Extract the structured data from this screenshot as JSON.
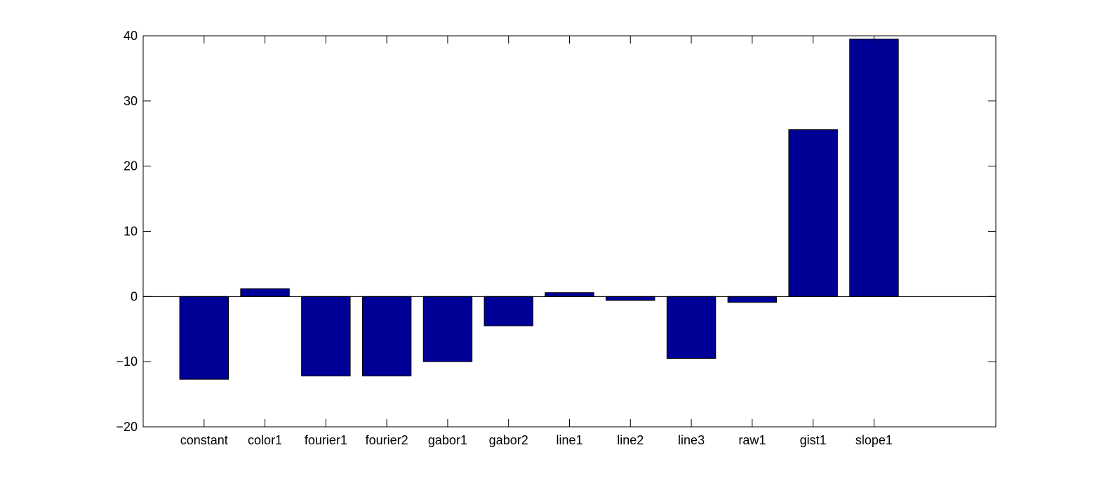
{
  "colors": {
    "bar_fill": "#000096",
    "bar_stroke": "#000000",
    "axis": "#000000",
    "background": "#ffffff"
  },
  "chart_data": {
    "type": "bar",
    "title": "",
    "xlabel": "",
    "ylabel": "",
    "categories": [
      "constant",
      "color1",
      "fourier1",
      "fourier2",
      "gabor1",
      "gabor2",
      "line1",
      "line2",
      "line3",
      "raw1",
      "gist1",
      "slope1"
    ],
    "values": [
      -12.7,
      1.2,
      -12.2,
      -12.2,
      -10.0,
      -4.5,
      0.6,
      -0.6,
      -9.5,
      -0.9,
      25.6,
      39.5
    ],
    "ylim": [
      -20,
      40
    ],
    "xlim": [
      0,
      14
    ],
    "yticks": [
      -20,
      -10,
      0,
      10,
      20,
      30,
      40
    ],
    "ytick_labels": [
      "−20",
      "−10",
      "0",
      "10",
      "20",
      "30",
      "40"
    ],
    "grid": false,
    "legend": "none"
  }
}
